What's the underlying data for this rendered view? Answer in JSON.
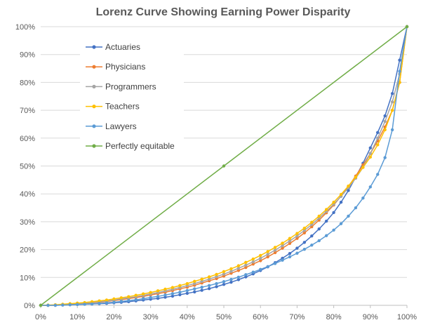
{
  "chart_data": {
    "type": "line",
    "title": "Lorenz Curve Showing Earning Power Disparity",
    "xlabel": "",
    "ylabel": "",
    "xlim": [
      0,
      100
    ],
    "ylim": [
      0,
      100
    ],
    "x_ticks": [
      "0%",
      "10%",
      "20%",
      "30%",
      "40%",
      "50%",
      "60%",
      "70%",
      "80%",
      "90%",
      "100%"
    ],
    "y_ticks": [
      "0%",
      "10%",
      "20%",
      "30%",
      "40%",
      "50%",
      "60%",
      "70%",
      "80%",
      "90%",
      "100%"
    ],
    "grid": "horizontal",
    "legend_position": "top-left inside",
    "series": [
      {
        "name": "Actuaries",
        "color": "#4472C4",
        "x": [
          0,
          2,
          4,
          6,
          8,
          10,
          12,
          14,
          16,
          18,
          20,
          22,
          24,
          26,
          28,
          30,
          32,
          34,
          36,
          38,
          40,
          42,
          44,
          46,
          48,
          50,
          52,
          54,
          56,
          58,
          60,
          62,
          64,
          66,
          68,
          70,
          72,
          74,
          76,
          78,
          80,
          82,
          84,
          86,
          88,
          90,
          92,
          94,
          96,
          98,
          100
        ],
        "y": [
          0,
          0,
          0,
          0.1,
          0.2,
          0.3,
          0.4,
          0.5,
          0.6,
          0.7,
          0.9,
          1.1,
          1.3,
          1.6,
          1.9,
          2.2,
          2.5,
          2.9,
          3.3,
          3.8,
          4.3,
          4.8,
          5.4,
          6.0,
          6.7,
          7.5,
          8.3,
          9.2,
          10.2,
          11.3,
          12.5,
          13.8,
          15.3,
          16.9,
          18.6,
          20.5,
          22.6,
          24.9,
          27.4,
          30.2,
          33.3,
          37.0,
          41.2,
          46.0,
          51.0,
          56.5,
          62.0,
          68.0,
          76.0,
          88.0,
          100
        ]
      },
      {
        "name": "Physicians",
        "color": "#ED7D31",
        "x": [
          0,
          2,
          4,
          6,
          8,
          10,
          12,
          14,
          16,
          18,
          20,
          22,
          24,
          26,
          28,
          30,
          32,
          34,
          36,
          38,
          40,
          42,
          44,
          46,
          48,
          50,
          52,
          54,
          56,
          58,
          60,
          62,
          64,
          66,
          68,
          70,
          72,
          74,
          76,
          78,
          80,
          82,
          84,
          86,
          88,
          90,
          92,
          94,
          96,
          98,
          100
        ],
        "y": [
          0,
          0,
          0.1,
          0.2,
          0.3,
          0.5,
          0.7,
          0.9,
          1.1,
          1.4,
          1.7,
          2.0,
          2.4,
          2.8,
          3.2,
          3.7,
          4.2,
          4.7,
          5.3,
          5.9,
          6.5,
          7.2,
          8.0,
          8.8,
          9.6,
          10.5,
          11.5,
          12.5,
          13.6,
          14.8,
          16.0,
          17.4,
          18.9,
          20.5,
          22.2,
          24.0,
          26.0,
          28.2,
          30.6,
          33.2,
          36.0,
          39.2,
          42.6,
          46.4,
          50.4,
          54.5,
          59.0,
          64.0,
          70.0,
          80.0,
          100
        ]
      },
      {
        "name": "Programmers",
        "color": "#A5A5A5",
        "x": [
          0,
          2,
          4,
          6,
          8,
          10,
          12,
          14,
          16,
          18,
          20,
          22,
          24,
          26,
          28,
          30,
          32,
          34,
          36,
          38,
          40,
          42,
          44,
          46,
          48,
          50,
          52,
          54,
          56,
          58,
          60,
          62,
          64,
          66,
          68,
          70,
          72,
          74,
          76,
          78,
          80,
          82,
          84,
          86,
          88,
          90,
          92,
          94,
          96,
          98,
          100
        ],
        "y": [
          0,
          0,
          0.1,
          0.2,
          0.4,
          0.6,
          0.8,
          1.0,
          1.3,
          1.6,
          1.9,
          2.3,
          2.7,
          3.1,
          3.6,
          4.1,
          4.6,
          5.2,
          5.8,
          6.4,
          7.1,
          7.8,
          8.6,
          9.4,
          10.3,
          11.2,
          12.2,
          13.3,
          14.4,
          15.6,
          16.9,
          18.3,
          19.8,
          21.4,
          23.1,
          24.9,
          26.9,
          29.0,
          31.3,
          33.7,
          36.3,
          39.1,
          42.2,
          45.6,
          49.5,
          54.5,
          60.0,
          66.0,
          73.0,
          83.0,
          100
        ]
      },
      {
        "name": "Teachers",
        "color": "#FFC000",
        "x": [
          0,
          2,
          4,
          6,
          8,
          10,
          12,
          14,
          16,
          18,
          20,
          22,
          24,
          26,
          28,
          30,
          32,
          34,
          36,
          38,
          40,
          42,
          44,
          46,
          48,
          50,
          52,
          54,
          56,
          58,
          60,
          62,
          64,
          66,
          68,
          70,
          72,
          74,
          76,
          78,
          80,
          82,
          84,
          86,
          88,
          90,
          92,
          94,
          96,
          98,
          100
        ],
        "y": [
          0,
          0.1,
          0.2,
          0.4,
          0.6,
          0.8,
          1.0,
          1.3,
          1.6,
          1.9,
          2.3,
          2.7,
          3.1,
          3.6,
          4.1,
          4.6,
          5.2,
          5.8,
          6.4,
          7.1,
          7.8,
          8.6,
          9.4,
          10.2,
          11.1,
          12.1,
          13.1,
          14.2,
          15.4,
          16.6,
          17.9,
          19.3,
          20.8,
          22.3,
          24.0,
          25.8,
          27.7,
          29.8,
          32.0,
          34.4,
          37.0,
          39.8,
          42.8,
          46.0,
          49.5,
          53.2,
          57.6,
          63.0,
          70.0,
          80.0,
          100
        ]
      },
      {
        "name": "Lawyers",
        "color": "#5B9BD5",
        "x": [
          0,
          2,
          4,
          6,
          8,
          10,
          12,
          14,
          16,
          18,
          20,
          22,
          24,
          26,
          28,
          30,
          32,
          34,
          36,
          38,
          40,
          42,
          44,
          46,
          48,
          50,
          52,
          54,
          56,
          58,
          60,
          62,
          64,
          66,
          68,
          70,
          72,
          74,
          76,
          78,
          80,
          82,
          84,
          86,
          88,
          90,
          92,
          94,
          96,
          98,
          100
        ],
        "y": [
          0,
          0,
          0,
          0.1,
          0.2,
          0.3,
          0.4,
          0.5,
          0.7,
          0.9,
          1.1,
          1.4,
          1.7,
          2.0,
          2.4,
          2.8,
          3.2,
          3.7,
          4.2,
          4.7,
          5.3,
          5.9,
          6.5,
          7.1,
          7.8,
          8.5,
          9.3,
          10.1,
          11.0,
          11.9,
          12.9,
          13.9,
          15.0,
          16.2,
          17.4,
          18.7,
          20.1,
          21.6,
          23.2,
          25.0,
          27.0,
          29.3,
          32.0,
          35.0,
          38.5,
          42.5,
          47.0,
          53.0,
          63.0,
          84.0,
          100
        ]
      },
      {
        "name": "Perfectly equitable",
        "color": "#70AD47",
        "x": [
          0,
          50,
          100
        ],
        "y": [
          0,
          50,
          100
        ]
      }
    ]
  }
}
